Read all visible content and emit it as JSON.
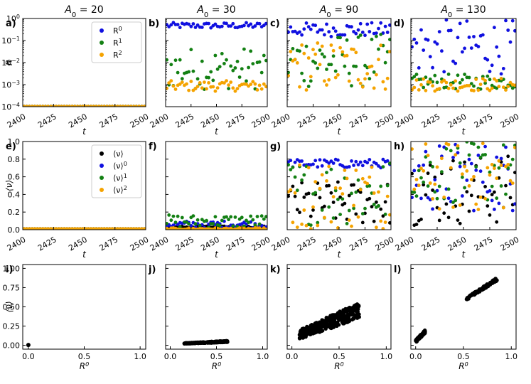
{
  "colors": {
    "s0": "#1010e0",
    "s1": "#138013",
    "s2": "#f5a300",
    "mean": "#000000"
  },
  "chart_data": [
    {
      "id": "a",
      "type": "scatter",
      "letter": "a)",
      "title": "A0 = 20",
      "xlabel": "t",
      "ylabel": "R",
      "yscale": "log",
      "xlim": [
        2400,
        2500
      ],
      "ylim": [
        0.0001,
        1
      ],
      "xticks": [
        "2400",
        "2425",
        "2450",
        "2475",
        "2500"
      ],
      "yticks": [
        "10^-4",
        "10^-3",
        "10^-2",
        "10^-1",
        "10^0"
      ],
      "legend": [
        "R^0",
        "R^1",
        "R^2"
      ],
      "series": [
        {
          "name": "R^0",
          "band": [
            0.0001,
            0.0001
          ]
        },
        {
          "name": "R^1",
          "band": [
            0.0001,
            0.0001
          ]
        },
        {
          "name": "R^2",
          "band": [
            0.0001,
            0.0001
          ]
        }
      ]
    },
    {
      "id": "b",
      "type": "scatter",
      "letter": "b)",
      "title": "A0 = 30",
      "xlabel": "t",
      "yscale": "log",
      "xlim": [
        2400,
        2500
      ],
      "ylim": [
        0.0001,
        1
      ],
      "xticks": [
        "2400",
        "2425",
        "2450",
        "2475",
        "2500"
      ],
      "series": [
        {
          "name": "R^0",
          "band": [
            0.35,
            0.65
          ]
        },
        {
          "name": "R^1",
          "band": [
            0.0006,
            0.05
          ]
        },
        {
          "name": "R^2",
          "band": [
            0.0005,
            0.0015
          ]
        }
      ]
    },
    {
      "id": "c",
      "type": "scatter",
      "letter": "c)",
      "title": "A0 = 90",
      "xlabel": "t",
      "yscale": "log",
      "xlim": [
        2400,
        2500
      ],
      "ylim": [
        0.0001,
        1
      ],
      "xticks": [
        "2400",
        "2425",
        "2450",
        "2475",
        "2500"
      ],
      "series": [
        {
          "name": "R^0",
          "band": [
            0.15,
            0.65
          ]
        },
        {
          "name": "R^1",
          "band": [
            0.0007,
            0.2
          ]
        },
        {
          "name": "R^2",
          "band": [
            0.0005,
            0.1
          ]
        }
      ]
    },
    {
      "id": "d",
      "type": "scatter",
      "letter": "d)",
      "title": "A0 = 130",
      "xlabel": "t",
      "yscale": "log",
      "xlim": [
        2400,
        2500
      ],
      "ylim": [
        0.0001,
        1
      ],
      "xticks": [
        "2400",
        "2425",
        "2450",
        "2475",
        "2500"
      ],
      "series": [
        {
          "name": "R^0",
          "band": [
            0.003,
            0.9
          ]
        },
        {
          "name": "R^1",
          "band": [
            0.0006,
            0.003
          ]
        },
        {
          "name": "R^2",
          "band": [
            0.0005,
            0.002
          ]
        }
      ]
    },
    {
      "id": "e",
      "type": "scatter",
      "letter": "e)",
      "xlabel": "t",
      "ylabel": "⟨ν⟩",
      "xlim": [
        2400,
        2500
      ],
      "ylim": [
        0,
        1
      ],
      "xticks": [
        "2400",
        "2425",
        "2450",
        "2475",
        "2500"
      ],
      "yticks": [
        "0.0",
        "0.2",
        "0.4",
        "0.6",
        "0.8",
        "1.0"
      ],
      "legend": [
        "⟨ν⟩",
        "⟨ν⟩^0",
        "⟨ν⟩^1",
        "⟨ν⟩^2"
      ],
      "series": [
        {
          "name": "⟨ν⟩",
          "band": [
            0.01,
            0.01
          ]
        },
        {
          "name": "⟨ν⟩^0",
          "band": [
            0.01,
            0.01
          ]
        },
        {
          "name": "⟨ν⟩^1",
          "band": [
            0.01,
            0.01
          ]
        },
        {
          "name": "⟨ν⟩^2",
          "band": [
            0.01,
            0.01
          ]
        }
      ]
    },
    {
      "id": "f",
      "type": "scatter",
      "letter": "f)",
      "xlabel": "t",
      "xlim": [
        2400,
        2500
      ],
      "ylim": [
        0,
        1
      ],
      "xticks": [
        "2400",
        "2425",
        "2450",
        "2475",
        "2500"
      ],
      "series": [
        {
          "name": "⟨ν⟩",
          "band": [
            0.02,
            0.04
          ]
        },
        {
          "name": "⟨ν⟩^0",
          "band": [
            0.02,
            0.1
          ]
        },
        {
          "name": "⟨ν⟩^1",
          "band": [
            0.02,
            0.17
          ]
        },
        {
          "name": "⟨ν⟩^2",
          "band": [
            0.0,
            0.02
          ]
        }
      ]
    },
    {
      "id": "g",
      "type": "scatter",
      "letter": "g)",
      "xlabel": "t",
      "xlim": [
        2400,
        2500
      ],
      "ylim": [
        0,
        1
      ],
      "xticks": [
        "2400",
        "2425",
        "2450",
        "2475",
        "2500"
      ],
      "series": [
        {
          "name": "⟨ν⟩",
          "band": [
            0.05,
            0.55
          ]
        },
        {
          "name": "⟨ν⟩^0",
          "band": [
            0.7,
            0.8
          ]
        },
        {
          "name": "⟨ν⟩^1",
          "band": [
            0.05,
            0.8
          ]
        },
        {
          "name": "⟨ν⟩^2",
          "band": [
            0.0,
            0.8
          ]
        }
      ]
    },
    {
      "id": "h",
      "type": "scatter",
      "letter": "h)",
      "xlabel": "t",
      "xlim": [
        2400,
        2500
      ],
      "ylim": [
        0,
        1
      ],
      "xticks": [
        "2400",
        "2425",
        "2450",
        "2475",
        "2500"
      ],
      "series": [
        {
          "name": "⟨ν⟩",
          "band": [
            0.05,
            0.85
          ]
        },
        {
          "name": "⟨ν⟩^0",
          "band": [
            0.2,
            1.0
          ]
        },
        {
          "name": "⟨ν⟩^1",
          "band": [
            0.3,
            1.0
          ]
        },
        {
          "name": "⟨ν⟩^2",
          "band": [
            0.2,
            1.0
          ]
        }
      ]
    },
    {
      "id": "i",
      "type": "scatter",
      "letter": "i)",
      "xlabel": "R^0",
      "ylabel": "⟨ν⟩",
      "xlim": [
        -0.05,
        1.05
      ],
      "ylim": [
        -0.05,
        1.05
      ],
      "xticks": [
        "0.0",
        "0.5",
        "1.0"
      ],
      "yticks": [
        "0.00",
        "0.25",
        "0.50",
        "0.75",
        "1.00"
      ],
      "series": [
        {
          "name": "⟨ν⟩ vs R^0",
          "points": [
            [
              0.0,
              0.005
            ]
          ]
        }
      ]
    },
    {
      "id": "j",
      "type": "scatter",
      "letter": "j)",
      "xlabel": "R^0",
      "xlim": [
        -0.05,
        1.05
      ],
      "ylim": [
        -0.05,
        1.05
      ],
      "xticks": [
        "0.0",
        "0.5",
        "1.0"
      ],
      "series": [
        {
          "name": "⟨ν⟩ vs R^0",
          "cloud": {
            "x": [
              0.15,
              0.62
            ],
            "y0": [
              0.02,
              0.04
            ],
            "y1": [
              0.03,
              0.06
            ]
          }
        }
      ]
    },
    {
      "id": "k",
      "type": "scatter",
      "letter": "k)",
      "xlabel": "R^0",
      "xlim": [
        -0.05,
        1.05
      ],
      "ylim": [
        -0.05,
        1.05
      ],
      "xticks": [
        "0.0",
        "0.5",
        "1.0"
      ],
      "series": [
        {
          "name": "⟨ν⟩ vs R^0",
          "cloud": {
            "x": [
              0.08,
              0.72
            ],
            "y0": [
              0.08,
              0.35
            ],
            "y1": [
              0.2,
              0.56
            ]
          }
        }
      ]
    },
    {
      "id": "l",
      "type": "scatter",
      "letter": "l)",
      "xlabel": "R^0",
      "xlim": [
        -0.05,
        1.05
      ],
      "ylim": [
        -0.05,
        1.05
      ],
      "xticks": [
        "0.0",
        "0.5",
        "1.0"
      ],
      "series": [
        {
          "name": "⟨ν⟩ vs R^0",
          "clusters": [
            {
              "x": [
                0.0,
                0.1
              ],
              "y": [
                0.05,
                0.18
              ]
            },
            {
              "x": [
                0.53,
                0.85
              ],
              "y": [
                0.6,
                0.86
              ]
            }
          ]
        }
      ]
    }
  ]
}
